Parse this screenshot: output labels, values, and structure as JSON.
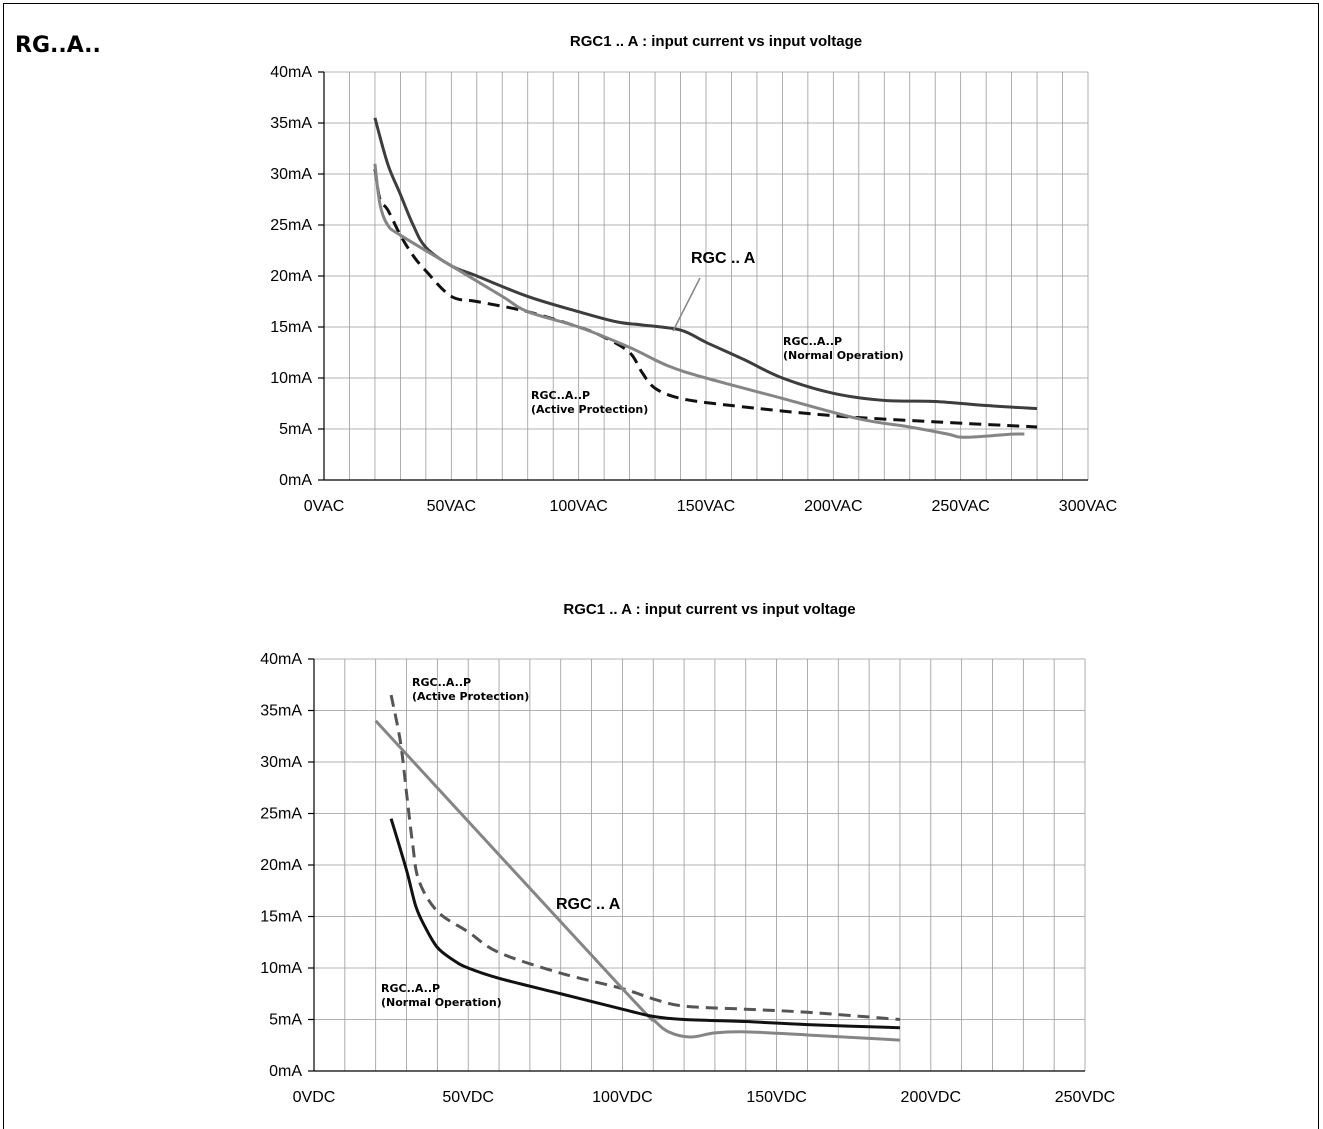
{
  "page": {
    "heading": "RG..A.."
  },
  "chart_data": [
    {
      "type": "line",
      "title": "RGC1 .. A : input current vs input voltage",
      "x_unit": "VAC",
      "y_unit": "mA",
      "xlim": [
        0,
        300
      ],
      "ylim": [
        0,
        40
      ],
      "x_ticks": [
        "0VAC",
        "50VAC",
        "100VAC",
        "150VAC",
        "200VAC",
        "250VAC",
        "300VAC"
      ],
      "y_ticks": [
        "0mA",
        "5mA",
        "10mA",
        "15mA",
        "20mA",
        "25mA",
        "30mA",
        "35mA",
        "40mA"
      ],
      "grid": true,
      "series": [
        {
          "name": "RGC..A..P (Normal Operation)",
          "color": "#3d3d3d",
          "dash": "solid",
          "points": [
            [
              20,
              35.5
            ],
            [
              25,
              31
            ],
            [
              30,
              28
            ],
            [
              35,
              25
            ],
            [
              40,
              22.8
            ],
            [
              50,
              21
            ],
            [
              60,
              20
            ],
            [
              80,
              18
            ],
            [
              100,
              16.5
            ],
            [
              115,
              15.5
            ],
            [
              125,
              15.2
            ],
            [
              140,
              14.7
            ],
            [
              150,
              13.5
            ],
            [
              165,
              11.8
            ],
            [
              180,
              10
            ],
            [
              200,
              8.5
            ],
            [
              220,
              7.8
            ],
            [
              240,
              7.7
            ],
            [
              260,
              7.3
            ],
            [
              280,
              7
            ]
          ]
        },
        {
          "name": "RGC..A..P (Active Protection)",
          "color": "#111111",
          "dash": "dashed",
          "points": [
            [
              20,
              30.5
            ],
            [
              22,
              27.5
            ],
            [
              25,
              26.5
            ],
            [
              30,
              24
            ],
            [
              35,
              22
            ],
            [
              40,
              20.5
            ],
            [
              50,
              18
            ],
            [
              60,
              17.5
            ],
            [
              80,
              16.5
            ],
            [
              100,
              15
            ],
            [
              110,
              14
            ],
            [
              120,
              12.5
            ],
            [
              125,
              10.5
            ],
            [
              130,
              9
            ],
            [
              140,
              8
            ],
            [
              160,
              7.3
            ],
            [
              200,
              6.3
            ],
            [
              240,
              5.7
            ],
            [
              280,
              5.2
            ]
          ]
        },
        {
          "name": "RGC .. A",
          "color": "#858585",
          "dash": "solid",
          "points": [
            [
              20,
              31
            ],
            [
              22,
              27
            ],
            [
              25,
              25
            ],
            [
              30,
              24
            ],
            [
              50,
              21
            ],
            [
              70,
              18
            ],
            [
              80,
              16.5
            ],
            [
              100,
              15
            ],
            [
              120,
              13
            ],
            [
              135,
              11.2
            ],
            [
              150,
              10
            ],
            [
              180,
              8
            ],
            [
              210,
              6
            ],
            [
              230,
              5.2
            ],
            [
              245,
              4.5
            ],
            [
              250,
              4.2
            ],
            [
              260,
              4.3
            ],
            [
              270,
              4.5
            ],
            [
              275,
              4.5
            ]
          ]
        }
      ],
      "annotations": [
        {
          "text_lines": [
            "RGC .. A"
          ],
          "style": "big"
        },
        {
          "text_lines": [
            "RGC..A..P",
            "(Normal Operation)"
          ],
          "style": "small"
        },
        {
          "text_lines": [
            "RGC..A..P",
            "(Active Protection)"
          ],
          "style": "small"
        }
      ]
    },
    {
      "type": "line",
      "title": "RGC1 .. A : input current vs input voltage",
      "x_unit": "VDC",
      "y_unit": "mA",
      "xlim": [
        0,
        250
      ],
      "ylim": [
        0,
        40
      ],
      "x_ticks": [
        "0VDC",
        "50VDC",
        "100VDC",
        "150VDC",
        "200VDC",
        "250VDC"
      ],
      "y_ticks": [
        "0mA",
        "5mA",
        "10mA",
        "15mA",
        "20mA",
        "25mA",
        "30mA",
        "35mA",
        "40mA"
      ],
      "grid": true,
      "series": [
        {
          "name": "RGC..A..P (Active Protection)",
          "color": "#555555",
          "dash": "dashed",
          "points": [
            [
              25,
              36.5
            ],
            [
              28,
              32
            ],
            [
              30,
              27
            ],
            [
              32,
              22
            ],
            [
              34,
              18.5
            ],
            [
              40,
              15.5
            ],
            [
              50,
              13.5
            ],
            [
              60,
              11.5
            ],
            [
              80,
              9.5
            ],
            [
              100,
              8
            ],
            [
              110,
              7
            ],
            [
              120,
              6.3
            ],
            [
              140,
              6
            ],
            [
              160,
              5.7
            ],
            [
              190,
              5
            ]
          ]
        },
        {
          "name": "RGC .. A",
          "color": "#858585",
          "dash": "solid",
          "points": [
            [
              20,
              34
            ],
            [
              100,
              8
            ],
            [
              110,
              5
            ],
            [
              115,
              3.8
            ],
            [
              122,
              3.3
            ],
            [
              130,
              3.7
            ],
            [
              140,
              3.8
            ],
            [
              160,
              3.5
            ],
            [
              190,
              3
            ]
          ]
        },
        {
          "name": "RGC..A..P (Normal Operation)",
          "color": "#111111",
          "dash": "solid",
          "points": [
            [
              25,
              24.5
            ],
            [
              30,
              19.5
            ],
            [
              33,
              16
            ],
            [
              36,
              14
            ],
            [
              40,
              12
            ],
            [
              45,
              10.8
            ],
            [
              50,
              10
            ],
            [
              60,
              9
            ],
            [
              80,
              7.5
            ],
            [
              100,
              6
            ],
            [
              110,
              5.3
            ],
            [
              120,
              5
            ],
            [
              140,
              4.8
            ],
            [
              160,
              4.5
            ],
            [
              190,
              4.2
            ]
          ]
        }
      ],
      "annotations": [
        {
          "text_lines": [
            "RGC .. A"
          ],
          "style": "big"
        },
        {
          "text_lines": [
            "RGC..A..P",
            "(Active Protection)"
          ],
          "style": "small"
        },
        {
          "text_lines": [
            "RGC..A..P",
            "(Normal Operation)"
          ],
          "style": "small"
        }
      ]
    }
  ]
}
